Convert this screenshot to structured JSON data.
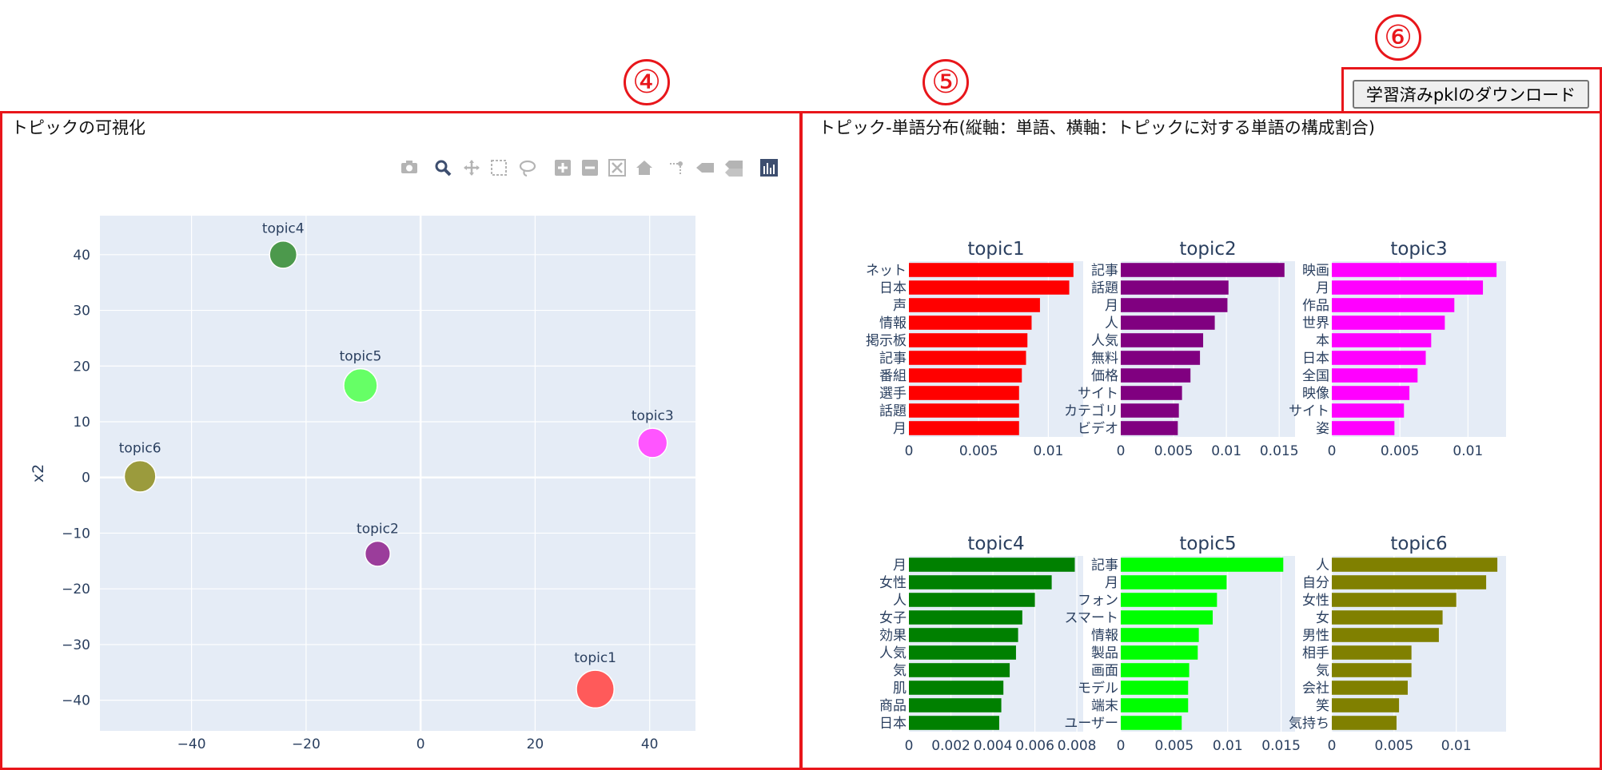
{
  "markers": {
    "m4": "④",
    "m5": "⑤",
    "m6": "⑥"
  },
  "download_button": {
    "label": "学習済みpklのダウンロード"
  },
  "left_panel": {
    "title": "トピックの可視化"
  },
  "right_panel": {
    "title": "トピック-単語分布(縦軸：単語、横軸：トピックに対する単語の構成割合)"
  },
  "modebar": {
    "icons": [
      "camera-icon",
      "zoom-icon",
      "pan-icon",
      "box-select-icon",
      "lasso-select-icon",
      "zoom-in-icon",
      "zoom-out-icon",
      "autoscale-icon",
      "reset-axes-icon",
      "spike-lines-icon",
      "hover-closest-icon",
      "hover-compare-icon",
      "plotly-logo-icon"
    ],
    "active_color": "#3d4e6f",
    "inactive_color": "#b4b4b4"
  },
  "chart_data": [
    {
      "type": "scatter",
      "title": "",
      "xlabel": "",
      "ylabel": "x2",
      "xlim": [
        -56,
        48
      ],
      "ylim": [
        -45.5,
        47
      ],
      "xticks": [
        -40,
        -20,
        0,
        20,
        40
      ],
      "yticks": [
        -40,
        -30,
        -20,
        -10,
        0,
        10,
        20,
        30,
        40
      ],
      "grid": true,
      "points": [
        {
          "label": "topic1",
          "x": 30.5,
          "y": -38,
          "size": 6,
          "color": "#ff5a5a"
        },
        {
          "label": "topic2",
          "x": -7.5,
          "y": -13.7,
          "size": 3,
          "color": "#9b3d9b"
        },
        {
          "label": "topic3",
          "x": 40.5,
          "y": 6.2,
          "size": 4,
          "color": "#ff55ff"
        },
        {
          "label": "topic4",
          "x": -24,
          "y": 40,
          "size": 3.5,
          "color": "#4c994c"
        },
        {
          "label": "topic5",
          "x": -10.5,
          "y": 16.5,
          "size": 5,
          "color": "#66ff66"
        },
        {
          "label": "topic6",
          "x": -49,
          "y": 0.2,
          "size": 4.5,
          "color": "#9b9b3d"
        }
      ]
    },
    {
      "type": "bar",
      "title": "topic1",
      "orientation": "horizontal",
      "color": "#ff0000",
      "categories": [
        "ネット",
        "日本",
        "声",
        "情報",
        "掲示板",
        "記事",
        "番組",
        "選手",
        "話題",
        "月"
      ],
      "values": [
        0.0118,
        0.0115,
        0.0094,
        0.0088,
        0.0085,
        0.0084,
        0.0081,
        0.0079,
        0.0079,
        0.0079
      ],
      "xlim": [
        0,
        0.0125
      ],
      "xticks": [
        0,
        0.005,
        0.01
      ],
      "xticklabels": [
        "0",
        "0.005",
        "0.01"
      ]
    },
    {
      "type": "bar",
      "title": "topic2",
      "orientation": "horizontal",
      "color": "#800080",
      "categories": [
        "記事",
        "話題",
        "月",
        "人",
        "人気",
        "無料",
        "価格",
        "サイト",
        "カテゴリ",
        "ビデオ"
      ],
      "values": [
        0.0155,
        0.0102,
        0.0101,
        0.0089,
        0.0078,
        0.0075,
        0.0066,
        0.0058,
        0.0055,
        0.0054
      ],
      "xlim": [
        0,
        0.0165
      ],
      "xticks": [
        0,
        0.005,
        0.01,
        0.015
      ],
      "xticklabels": [
        "0",
        "0.005",
        "0.01",
        "0.015"
      ]
    },
    {
      "type": "bar",
      "title": "topic3",
      "orientation": "horizontal",
      "color": "#ff00ff",
      "categories": [
        "映画",
        "月",
        "作品",
        "世界",
        "本",
        "日本",
        "全国",
        "映像",
        "サイト",
        "姿"
      ],
      "values": [
        0.0121,
        0.0111,
        0.009,
        0.0083,
        0.0073,
        0.0069,
        0.0063,
        0.0057,
        0.0053,
        0.0046
      ],
      "xlim": [
        0,
        0.0128
      ],
      "xticks": [
        0,
        0.005,
        0.01
      ],
      "xticklabels": [
        "0",
        "0.005",
        "0.01"
      ]
    },
    {
      "type": "bar",
      "title": "topic4",
      "orientation": "horizontal",
      "color": "#008000",
      "categories": [
        "月",
        "女性",
        "人",
        "女子",
        "効果",
        "人気",
        "気",
        "肌",
        "商品",
        "日本"
      ],
      "values": [
        0.0079,
        0.0068,
        0.006,
        0.0054,
        0.0052,
        0.0051,
        0.0048,
        0.0045,
        0.0044,
        0.0043
      ],
      "xlim": [
        0,
        0.0083
      ],
      "xticks": [
        0,
        0.002,
        0.004,
        0.006,
        0.008
      ],
      "xticklabels": [
        "0",
        "0.002",
        "0.004",
        "0.006",
        "0.008"
      ]
    },
    {
      "type": "bar",
      "title": "topic5",
      "orientation": "horizontal",
      "color": "#00ff00",
      "categories": [
        "記事",
        "月",
        "フォン",
        "スマート",
        "情報",
        "製品",
        "画面",
        "モデル",
        "端末",
        "ユーザー"
      ],
      "values": [
        0.0152,
        0.0099,
        0.009,
        0.0086,
        0.0073,
        0.0072,
        0.0064,
        0.0063,
        0.0063,
        0.0057
      ],
      "xlim": [
        0,
        0.0163
      ],
      "xticks": [
        0,
        0.005,
        0.01,
        0.015
      ],
      "xticklabels": [
        "0",
        "0.005",
        "0.01",
        "0.015"
      ]
    },
    {
      "type": "bar",
      "title": "topic6",
      "orientation": "horizontal",
      "color": "#808000",
      "categories": [
        "人",
        "自分",
        "女性",
        "女",
        "男性",
        "相手",
        "気",
        "会社",
        "笑",
        "気持ち"
      ],
      "values": [
        0.0133,
        0.0124,
        0.01,
        0.0089,
        0.0086,
        0.0064,
        0.0064,
        0.0061,
        0.0054,
        0.0052
      ],
      "xlim": [
        0,
        0.014
      ],
      "xticks": [
        0,
        0.005,
        0.01
      ],
      "xticklabels": [
        "0",
        "0.005",
        "0.01"
      ]
    }
  ]
}
